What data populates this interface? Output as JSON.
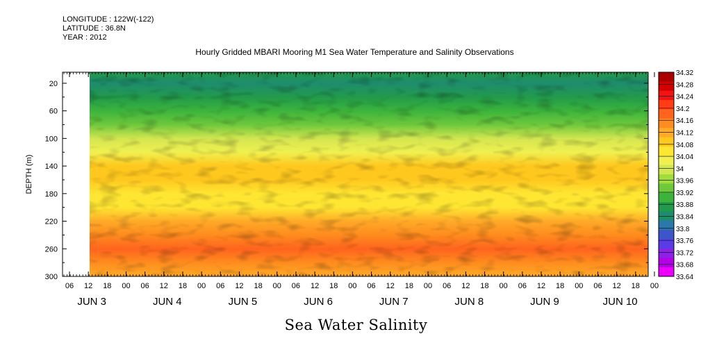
{
  "meta": {
    "longitude": "LONGITUDE : 122W(-122)",
    "latitude": "LATITUDE : 36.8N",
    "year": "YEAR : 2012"
  },
  "chart_data": {
    "type": "heatmap",
    "title": "Hourly Gridded MBARI Mooring M1 Sea Water Temperature and Salinity Observations",
    "xlabel": "Sea Water Salinity",
    "ylabel": "DEPTH (m)",
    "y_ticks": [
      20,
      60,
      100,
      140,
      180,
      220,
      260,
      300
    ],
    "ylim": [
      300,
      4
    ],
    "x_hour_ticks": [
      "06",
      "12",
      "18",
      "00",
      "06",
      "12",
      "18",
      "00",
      "06",
      "12",
      "18",
      "00",
      "06",
      "12",
      "18",
      "00",
      "06",
      "12",
      "18",
      "00",
      "06",
      "12",
      "18",
      "00",
      "06",
      "12",
      "18",
      "00",
      "06",
      "12",
      "18",
      "00"
    ],
    "x_day_labels": [
      "JUN  3",
      "JUN  4",
      "JUN  5",
      "JUN  6",
      "JUN  7",
      "JUN  8",
      "JUN  9",
      "JUN 10"
    ],
    "data_start_hour": 12,
    "colorbar_levels": [
      33.64,
      33.68,
      33.72,
      33.76,
      33.8,
      33.84,
      33.88,
      33.92,
      33.96,
      34,
      34.04,
      34.08,
      34.12,
      34.16,
      34.2,
      34.24,
      34.28,
      34.32
    ],
    "colorbar_labels": [
      "34.32",
      "34.28",
      "34.24",
      "34.2",
      "34.16",
      "34.12",
      "34.08",
      "34.04",
      "34",
      "33.96",
      "33.92",
      "33.88",
      "33.84",
      "33.8",
      "33.76",
      "33.72",
      "33.68",
      "33.64"
    ],
    "colorbar_colors": [
      "#ee00ff",
      "#b400e6",
      "#8c22e6",
      "#5a3ce6",
      "#3c55c8",
      "#2d78aa",
      "#1e8c6e",
      "#229a4b",
      "#3cb43c",
      "#6ec83c",
      "#a0dc3c",
      "#d2e650",
      "#f0f050",
      "#ffe632",
      "#ffc81e",
      "#ffaa28",
      "#ff8c1e",
      "#ff641e",
      "#ff3c14",
      "#f01414",
      "#d20000",
      "#aa0000"
    ],
    "depth_profile": [
      {
        "depth": 4,
        "value": 33.88
      },
      {
        "depth": 20,
        "value": 33.86
      },
      {
        "depth": 40,
        "value": 33.9
      },
      {
        "depth": 60,
        "value": 33.93
      },
      {
        "depth": 80,
        "value": 33.97
      },
      {
        "depth": 100,
        "value": 34.04
      },
      {
        "depth": 120,
        "value": 34.1
      },
      {
        "depth": 140,
        "value": 34.16
      },
      {
        "depth": 160,
        "value": 34.17
      },
      {
        "depth": 180,
        "value": 34.13
      },
      {
        "depth": 200,
        "value": 34.12
      },
      {
        "depth": 220,
        "value": 34.22
      },
      {
        "depth": 240,
        "value": 34.27
      },
      {
        "depth": 260,
        "value": 34.3
      },
      {
        "depth": 280,
        "value": 34.26
      },
      {
        "depth": 300,
        "value": 34.22
      }
    ]
  }
}
